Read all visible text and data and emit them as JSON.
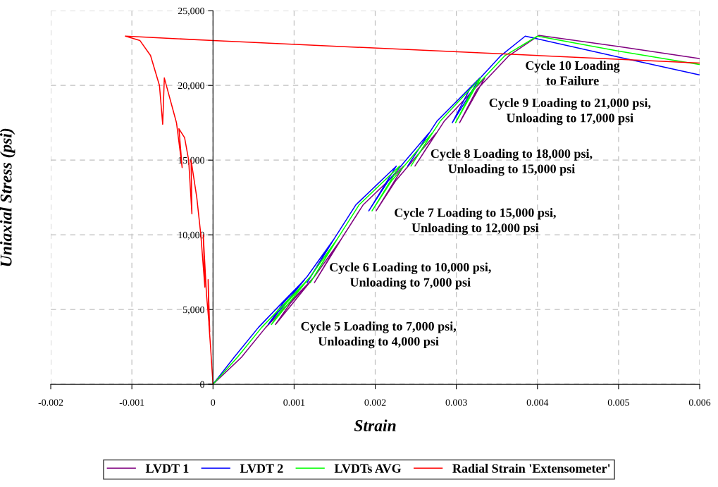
{
  "chart_data": {
    "type": "line",
    "xlabel": "Strain",
    "ylabel": "Uniaxial Stress (psi)",
    "xlim": [
      -0.002,
      0.006
    ],
    "xticks": [
      -0.002,
      -0.001,
      0,
      0.001,
      0.002,
      0.003,
      0.004,
      0.005,
      0.006
    ],
    "ylim": [
      0,
      25000
    ],
    "yticks": [
      {
        "value": 0,
        "label": "0"
      },
      {
        "value": 5000,
        "label": "5,000"
      },
      {
        "value": 10000,
        "label": "10,000"
      },
      {
        "value": 15000,
        "label": "15,000"
      },
      {
        "value": 20000,
        "label": "20,000"
      },
      {
        "value": 25000,
        "label": "25,000"
      }
    ],
    "grid": true,
    "legend": "bottom",
    "marker": "none",
    "line_style": "solid",
    "series": [
      {
        "name": "LVDT 1",
        "color": "#800080",
        "x": [
          0,
          0.00035,
          0.00065,
          0.00095,
          0.00122,
          0.00077,
          0.00095,
          0.00125,
          0.00158,
          0.00125,
          0.00145,
          0.00185,
          0.00235,
          0.00201,
          0.00225,
          0.00275,
          0.00249,
          0.00285,
          0.00335,
          0.00304,
          0.00325,
          0.00365,
          0.00402,
          0.005,
          0.006
        ],
        "values": [
          0,
          1800,
          3800,
          5500,
          7000,
          4000,
          5400,
          7200,
          9700,
          6800,
          8600,
          12000,
          14600,
          11600,
          13600,
          16800,
          14600,
          17600,
          20500,
          17500,
          19700,
          22000,
          23350,
          22600,
          21800
        ]
      },
      {
        "name": "LVDT 2",
        "color": "#0000ff",
        "x": [
          0,
          0.00026,
          0.00056,
          0.00086,
          0.00113,
          0.00068,
          0.00086,
          0.00116,
          0.00149,
          0.00116,
          0.00136,
          0.00176,
          0.00226,
          0.00192,
          0.00216,
          0.00266,
          0.0024,
          0.00276,
          0.00329,
          0.00295,
          0.00316,
          0.00355,
          0.00385,
          0.005,
          0.006
        ],
        "values": [
          0,
          1800,
          3800,
          5500,
          7000,
          4000,
          5400,
          7200,
          9700,
          6800,
          8600,
          12000,
          14600,
          11600,
          13600,
          16800,
          14600,
          17600,
          20500,
          17500,
          19700,
          22000,
          23300,
          21900,
          20700
        ]
      },
      {
        "name": "LVDTs AVG",
        "color": "#00ff00",
        "x": [
          0,
          0.0003,
          0.0006,
          0.0009,
          0.00117,
          0.00072,
          0.0009,
          0.0012,
          0.00153,
          0.0012,
          0.0014,
          0.0018,
          0.0023,
          0.00196,
          0.0022,
          0.0027,
          0.00244,
          0.0028,
          0.0033,
          0.00299,
          0.0032,
          0.0036,
          0.004,
          0.005,
          0.006
        ],
        "values": [
          0,
          1800,
          3800,
          5500,
          7000,
          4000,
          5400,
          7200,
          9700,
          6800,
          8600,
          12000,
          14600,
          11600,
          13600,
          16800,
          14600,
          17600,
          20500,
          17500,
          19700,
          22000,
          23300,
          22300,
          21400
        ]
      },
      {
        "name": "Radial Strain 'Extensometer'",
        "color": "#ff0000",
        "x": [
          0,
          -3e-05,
          -5e-05,
          -6e-05,
          -4e-05,
          -8e-05,
          -0.00012,
          -0.0001,
          -0.00015,
          -0.0002,
          -0.00027,
          -0.00026,
          -0.0003,
          -0.00035,
          -0.00042,
          -0.00038,
          -0.00045,
          -0.0006,
          -0.00062,
          -0.00066,
          -0.00077,
          -0.0009,
          -0.00108,
          0,
          0.006
        ],
        "values": [
          0,
          2500,
          4000,
          7000,
          3500,
          6000,
          10000,
          6500,
          10000,
          12500,
          15000,
          11400,
          15000,
          16500,
          17100,
          14500,
          17500,
          20500,
          17400,
          20000,
          22000,
          23000,
          23300,
          23000,
          21500
        ]
      }
    ],
    "annotations": [
      "Cycle 5 Loading to 7,000 psi,\nUnloading to 4,000 psi",
      "Cycle 6 Loading to 10,000 psi,\nUnloading to 7,000 psi",
      "Cycle 7 Loading to 15,000 psi,\nUnloading to 12,000 psi",
      "Cycle 8 Loading to 18,000 psi,\nUnloading to 15,000 psi",
      "Cycle 9 Loading to 21,000 psi,\nUnloading to 17,000 psi",
      "Cycle 10 Loading\nto Failure"
    ]
  }
}
